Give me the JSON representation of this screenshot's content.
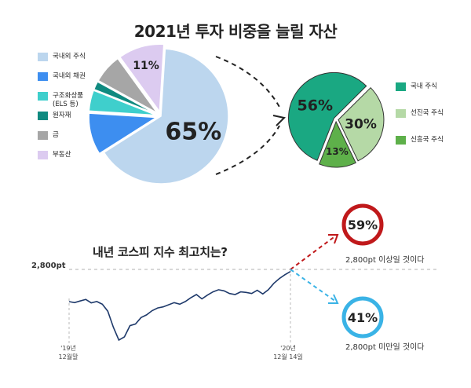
{
  "title": "2021년 투자 비중을 늘릴 자산",
  "chart_data": [
    {
      "type": "pie",
      "title": "2021년 투자 비중을 늘릴 자산",
      "slices": [
        {
          "name": "국내외 주식",
          "value": 65,
          "color": "#bcd6ee",
          "label": "65%"
        },
        {
          "name": "국내외 채권",
          "value": 10,
          "color": "#3d8ef0",
          "label": ""
        },
        {
          "name": "구조화상품\n(ELS 등)",
          "value": 5,
          "color": "#3fcfcc",
          "label": ""
        },
        {
          "name": "원자재",
          "value": 2,
          "color": "#0f8a80",
          "label": ""
        },
        {
          "name": "금",
          "value": 7,
          "color": "#a6a6a6",
          "label": ""
        },
        {
          "name": "부동산",
          "value": 11,
          "color": "#dccbf0",
          "label": "11%"
        }
      ],
      "legend_position": "left"
    },
    {
      "type": "pie",
      "slices": [
        {
          "name": "국내 주식",
          "value": 56,
          "color": "#1aa882",
          "label": "56%"
        },
        {
          "name": "선진국 주식",
          "value": 30,
          "color": "#b5d9a6",
          "label": "30%"
        },
        {
          "name": "신흥국 주식",
          "value": 13,
          "color": "#5eb04a",
          "label": "13%"
        }
      ],
      "legend_position": "right"
    },
    {
      "type": "line",
      "title": "내년 코스피 지수 최고치는?",
      "x_ticks": [
        "'19년\n12월말",
        "'20년\n12월 14일"
      ],
      "reference_line": {
        "label": "2,800pt",
        "value": 2800
      },
      "series": [
        {
          "values": [
            2198,
            2180,
            2210,
            2240,
            2175,
            2200,
            2150,
            2020,
            1720,
            1480,
            1540,
            1750,
            1780,
            1900,
            1950,
            2030,
            2080,
            2100,
            2140,
            2180,
            2150,
            2200,
            2270,
            2330,
            2250,
            2320,
            2380,
            2420,
            2400,
            2350,
            2330,
            2380,
            2370,
            2350,
            2410,
            2340,
            2420,
            2540,
            2630,
            2700,
            2760
          ]
        }
      ],
      "outcomes": [
        {
          "percent": "59%",
          "text": "2,800pt 이상일 것이다",
          "color": "#c0191b"
        },
        {
          "percent": "41%",
          "text": "2,800pt 미만일 것이다",
          "color": "#3ab3e6"
        }
      ]
    }
  ]
}
